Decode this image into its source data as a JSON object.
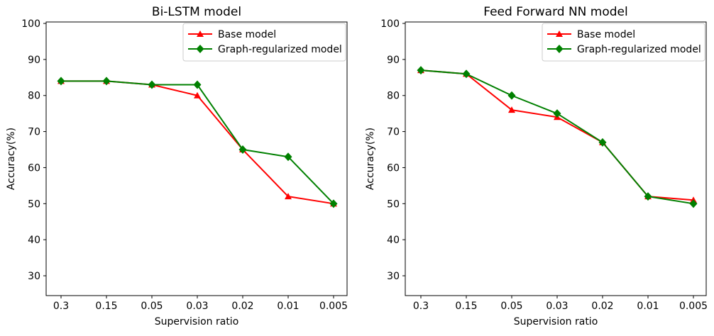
{
  "figure": {
    "background": "#ffffff",
    "text_color": "#000000",
    "axes_color": "#000000",
    "legend_border_color": "#cccccc"
  },
  "chart_data": [
    {
      "type": "line",
      "title": "Bi-LSTM model",
      "xlabel": "Supervision ratio",
      "ylabel": "Accuracy(%)",
      "categories": [
        "0.3",
        "0.15",
        "0.05",
        "0.03",
        "0.02",
        "0.01",
        "0.005"
      ],
      "yticks": [
        30,
        40,
        50,
        60,
        70,
        80,
        90,
        100
      ],
      "ylim": [
        24.5,
        100.4
      ],
      "grid": false,
      "legend": {
        "position": "upper right"
      },
      "series": [
        {
          "name": "Base model",
          "color": "#ff0000",
          "marker": "triangle",
          "values": [
            84,
            84,
            83,
            80,
            65,
            52,
            50
          ]
        },
        {
          "name": "Graph-regularized model",
          "color": "#008000",
          "marker": "diamond",
          "values": [
            84,
            84,
            83,
            83,
            65,
            63,
            50
          ]
        }
      ]
    },
    {
      "type": "line",
      "title": "Feed Forward NN model",
      "xlabel": "Supervision ratio",
      "ylabel": "Accuracy(%)",
      "categories": [
        "0.3",
        "0.15",
        "0.05",
        "0.03",
        "0.02",
        "0.01",
        "0.005"
      ],
      "yticks": [
        30,
        40,
        50,
        60,
        70,
        80,
        90,
        100
      ],
      "ylim": [
        24.5,
        100.4
      ],
      "grid": false,
      "legend": {
        "position": "upper right"
      },
      "series": [
        {
          "name": "Base model",
          "color": "#ff0000",
          "marker": "triangle",
          "values": [
            87,
            86,
            76,
            74,
            67,
            52,
            51
          ]
        },
        {
          "name": "Graph-regularized model",
          "color": "#008000",
          "marker": "diamond",
          "values": [
            87,
            86,
            80,
            75,
            67,
            52,
            50
          ]
        }
      ]
    }
  ]
}
